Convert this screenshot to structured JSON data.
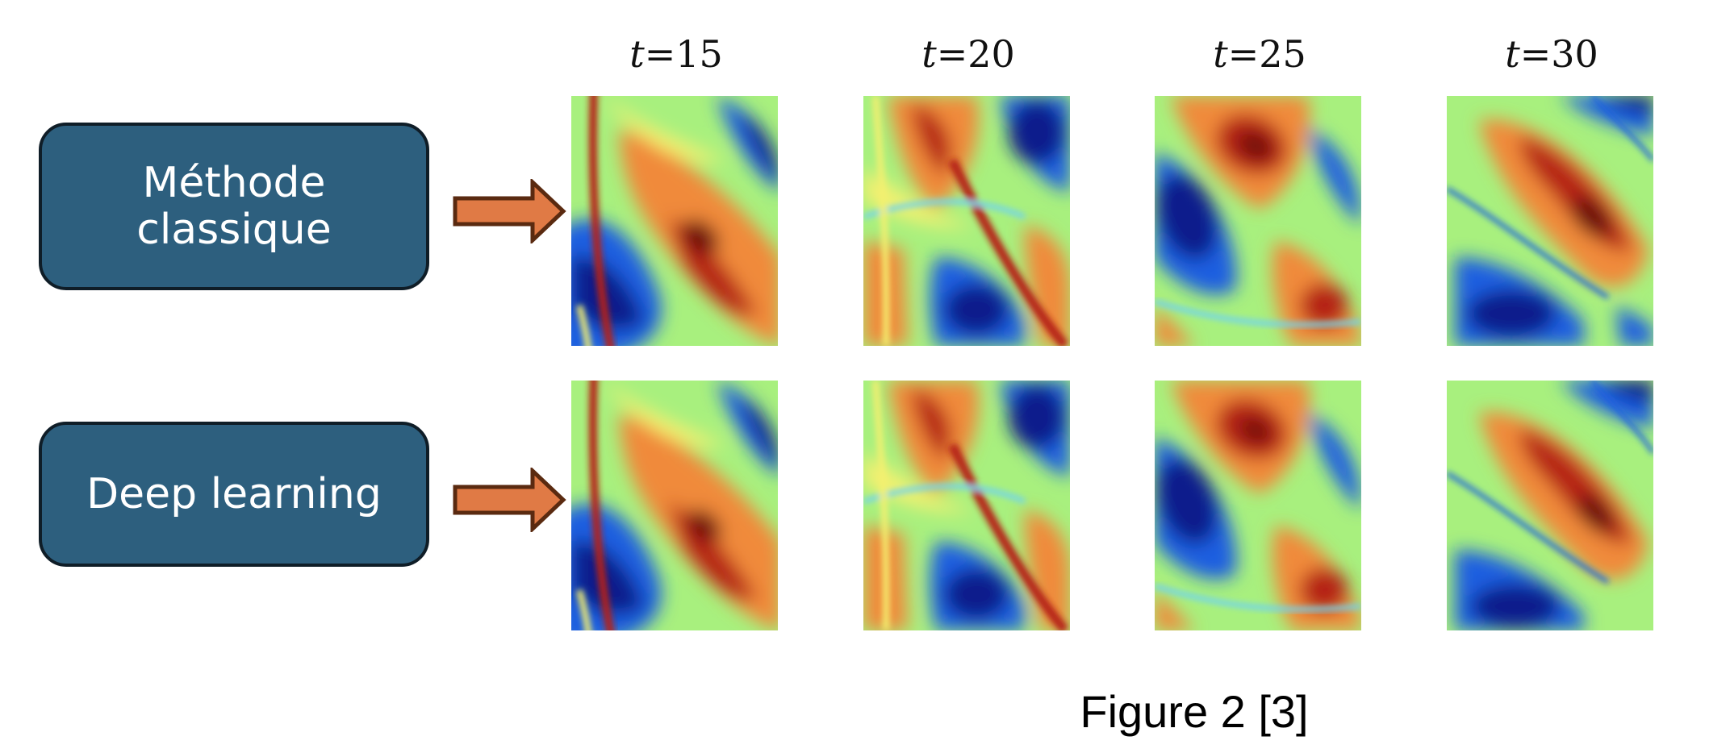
{
  "rows": [
    {
      "label_lines": [
        "Méthode",
        "classique"
      ]
    },
    {
      "label_lines": [
        "Deep learning"
      ]
    }
  ],
  "time_steps": [
    {
      "var": "t",
      "value": "=15"
    },
    {
      "var": "t",
      "value": "=20"
    },
    {
      "var": "t",
      "value": "=25"
    },
    {
      "var": "t",
      "value": "=30"
    }
  ],
  "caption": "Figure 2 [3]",
  "colors": {
    "label_box_fill": "#2d5f7e",
    "label_box_border": "#0f1d27",
    "label_text": "#ffffff",
    "arrow_fill": "#e07a45",
    "arrow_stroke": "#5a2a10",
    "colormap": [
      "#0a1e8c",
      "#1f5fe0",
      "#6fd3f0",
      "#a8f07e",
      "#f4f070",
      "#f08a3a",
      "#b52018",
      "#6e0b0b"
    ]
  }
}
